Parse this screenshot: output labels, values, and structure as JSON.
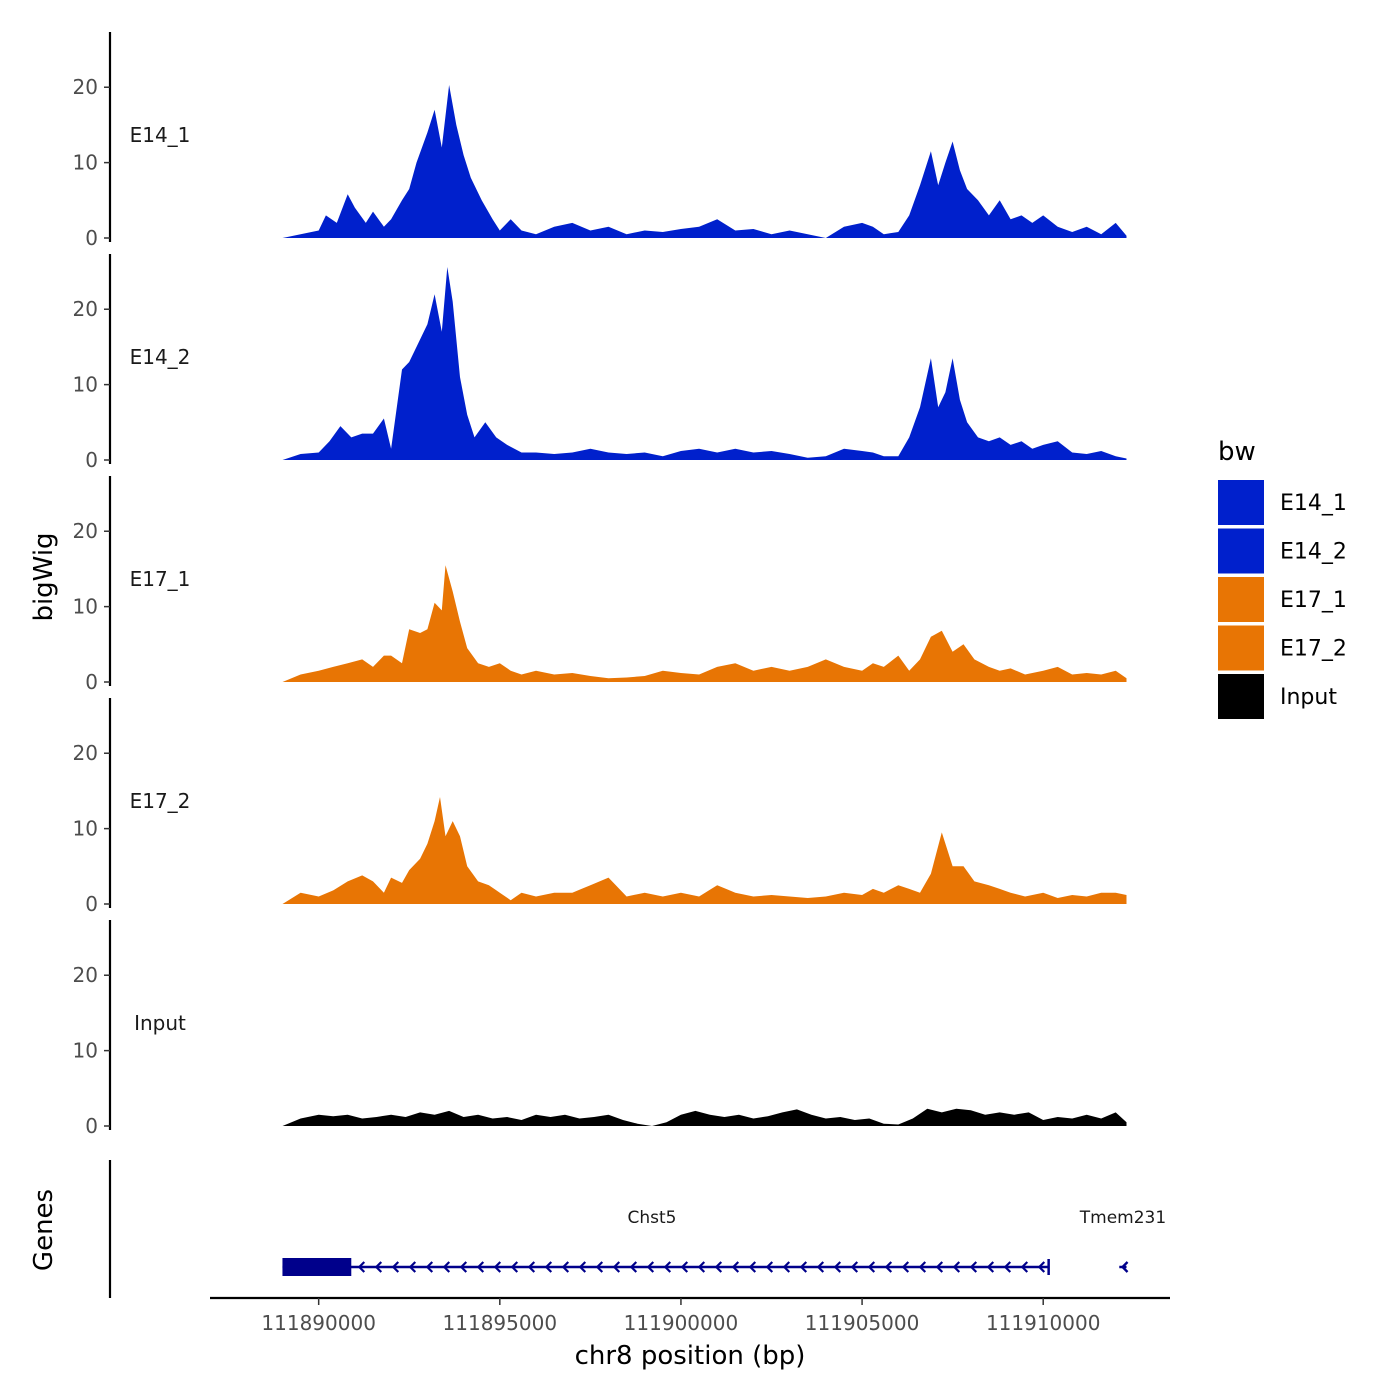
{
  "chart_data": {
    "type": "area",
    "chromosome": "chr8",
    "xlabel": "chr8 position (bp)",
    "ylabel": "bigWig",
    "genes_label": "Genes",
    "xlim": [
      111887000,
      111913500
    ],
    "ylim": [
      0,
      26
    ],
    "x_ticks": [
      111890000,
      111895000,
      111900000,
      111905000,
      111910000
    ],
    "x_tick_labels": [
      "111890000",
      "111895000",
      "111900000",
      "111905000",
      "111910000"
    ],
    "y_ticks": [
      0,
      10,
      20
    ],
    "y_tick_labels": [
      "0",
      "10",
      "20"
    ],
    "legend": {
      "title": "bw",
      "entries": [
        {
          "label": "E14_1",
          "color": "#0020CC"
        },
        {
          "label": "E14_2",
          "color": "#0020CC"
        },
        {
          "label": "E17_1",
          "color": "#E87504"
        },
        {
          "label": "E17_2",
          "color": "#E87504"
        },
        {
          "label": "Input",
          "color": "#000000"
        }
      ]
    },
    "series": [
      {
        "name": "E14_1",
        "color": "#0020CC",
        "x": [
          111889000,
          111889500,
          111890000,
          111890200,
          111890500,
          111890800,
          111891000,
          111891300,
          111891500,
          111891800,
          111892000,
          111892300,
          111892500,
          111892700,
          111893000,
          111893200,
          111893400,
          111893600,
          111893800,
          111894000,
          111894200,
          111894500,
          111894800,
          111895000,
          111895300,
          111895600,
          111896000,
          111896500,
          111897000,
          111897500,
          111898000,
          111898500,
          111899000,
          111899500,
          111900000,
          111900500,
          111901000,
          111901500,
          111902000,
          111902500,
          111903000,
          111903500,
          111904000,
          111904500,
          111905000,
          111905300,
          111905600,
          111906000,
          111906300,
          111906600,
          111906900,
          111907100,
          111907300,
          111907500,
          111907700,
          111907900,
          111908200,
          111908500,
          111908800,
          111909100,
          111909400,
          111909700,
          111910000,
          111910400,
          111910800,
          111911200,
          111911600,
          111912000,
          111912300
        ],
        "values": [
          0,
          0.5,
          1,
          3,
          2,
          5.8,
          4,
          2,
          3.5,
          1.5,
          2.5,
          5,
          6.5,
          10,
          14,
          17,
          12,
          20.3,
          15,
          11,
          8,
          5,
          2.5,
          1,
          2.5,
          1,
          0.5,
          1.5,
          2,
          1,
          1.5,
          0.5,
          1,
          0.8,
          1.2,
          1.5,
          2.5,
          1,
          1.2,
          0.5,
          1,
          0.5,
          0,
          1.5,
          2,
          1.5,
          0.5,
          0.8,
          3,
          7,
          11.5,
          7,
          10,
          12.8,
          9,
          6.5,
          5,
          3,
          5,
          2.5,
          3,
          2,
          3,
          1.5,
          0.8,
          1.5,
          0.5,
          2,
          0.3
        ]
      },
      {
        "name": "E14_2",
        "color": "#0020CC",
        "x": [
          111889000,
          111889500,
          111890000,
          111890300,
          111890600,
          111890900,
          111891200,
          111891500,
          111891800,
          111892000,
          111892300,
          111892500,
          111892700,
          111893000,
          111893200,
          111893400,
          111893550,
          111893700,
          111893900,
          111894100,
          111894300,
          111894600,
          111894900,
          111895200,
          111895600,
          111896000,
          111896500,
          111897000,
          111897500,
          111898000,
          111898500,
          111899000,
          111899500,
          111900000,
          111900500,
          111901000,
          111901500,
          111902000,
          111902500,
          111903000,
          111903500,
          111904000,
          111904500,
          111905000,
          111905300,
          111905600,
          111906000,
          111906300,
          111906600,
          111906900,
          111907100,
          111907300,
          111907500,
          111907700,
          111907900,
          111908200,
          111908500,
          111908800,
          111909100,
          111909400,
          111909700,
          111910000,
          111910400,
          111910800,
          111911200,
          111911600,
          111912000,
          111912300
        ],
        "values": [
          0,
          0.8,
          1,
          2.5,
          4.5,
          3,
          3.5,
          3.5,
          5.5,
          1.5,
          12,
          13,
          15,
          18,
          22,
          17,
          25.6,
          21,
          11,
          6,
          3,
          5,
          3,
          2,
          1,
          1,
          0.8,
          1,
          1.5,
          1,
          0.8,
          1,
          0.5,
          1.2,
          1.5,
          1,
          1.5,
          1,
          1.2,
          0.8,
          0.3,
          0.5,
          1.5,
          1.2,
          1,
          0.5,
          0.5,
          3,
          7,
          13.5,
          7,
          9,
          13.5,
          8,
          5,
          3,
          2.5,
          3,
          2,
          2.5,
          1.5,
          2,
          2.5,
          1,
          0.8,
          1.2,
          0.5,
          0.2
        ]
      },
      {
        "name": "E17_1",
        "color": "#E87504",
        "x": [
          111889000,
          111889500,
          111890000,
          111890400,
          111890800,
          111891200,
          111891500,
          111891800,
          111892000,
          111892300,
          111892500,
          111892800,
          111893000,
          111893200,
          111893400,
          111893500,
          111893700,
          111893900,
          111894100,
          111894400,
          111894700,
          111895000,
          111895300,
          111895600,
          111896000,
          111896500,
          111897000,
          111897500,
          111898000,
          111898500,
          111899000,
          111899500,
          111900000,
          111900500,
          111901000,
          111901500,
          111902000,
          111902500,
          111903000,
          111903500,
          111904000,
          111904500,
          111905000,
          111905300,
          111905600,
          111906000,
          111906300,
          111906600,
          111906900,
          111907200,
          111907500,
          111907800,
          111908100,
          111908500,
          111908800,
          111909100,
          111909500,
          111910000,
          111910400,
          111910800,
          111911200,
          111911600,
          111912000,
          111912300
        ],
        "values": [
          0,
          1,
          1.5,
          2,
          2.5,
          3,
          2,
          3.5,
          3.5,
          2.5,
          7,
          6.5,
          7,
          10.5,
          9.5,
          15.5,
          12,
          8,
          4.5,
          2.5,
          2,
          2.5,
          1.5,
          1,
          1.5,
          1,
          1.2,
          0.8,
          0.5,
          0.6,
          0.8,
          1.5,
          1.2,
          1,
          2,
          2.5,
          1.5,
          2,
          1.5,
          2,
          3,
          2,
          1.5,
          2.5,
          2,
          3.5,
          1.5,
          3,
          6,
          6.8,
          4,
          5,
          3,
          2,
          1.5,
          1.8,
          1,
          1.5,
          2,
          1,
          1.2,
          1,
          1.5,
          0.5
        ]
      },
      {
        "name": "E17_2",
        "color": "#E87504",
        "x": [
          111889000,
          111889500,
          111890000,
          111890400,
          111890800,
          111891200,
          111891500,
          111891800,
          111892000,
          111892300,
          111892500,
          111892800,
          111893000,
          111893200,
          111893350,
          111893500,
          111893700,
          111893900,
          111894100,
          111894400,
          111894700,
          111895000,
          111895300,
          111895600,
          111896000,
          111896500,
          111897000,
          111897500,
          111898000,
          111898500,
          111899000,
          111899500,
          111900000,
          111900500,
          111901000,
          111901500,
          111902000,
          111902500,
          111903000,
          111903500,
          111904000,
          111904500,
          111905000,
          111905300,
          111905600,
          111906000,
          111906300,
          111906600,
          111906900,
          111907200,
          111907500,
          111907800,
          111908100,
          111908500,
          111908800,
          111909100,
          111909500,
          111910000,
          111910400,
          111910800,
          111911200,
          111911600,
          111912000,
          111912300
        ],
        "values": [
          0,
          1.5,
          1,
          1.8,
          3,
          3.8,
          3,
          1.5,
          3.5,
          2.8,
          4.5,
          6,
          8,
          11,
          14.2,
          9,
          11,
          9,
          5,
          3,
          2.5,
          1.5,
          0.5,
          1.5,
          1,
          1.5,
          1.5,
          2.5,
          3.5,
          1,
          1.5,
          1,
          1.5,
          1,
          2.5,
          1.5,
          1,
          1.2,
          1,
          0.8,
          1,
          1.5,
          1.2,
          2,
          1.5,
          2.5,
          2,
          1.5,
          4,
          9.5,
          5,
          5,
          3,
          2.5,
          2,
          1.5,
          1,
          1.5,
          0.8,
          1.2,
          1,
          1.5,
          1.5,
          1.2
        ]
      },
      {
        "name": "Input",
        "color": "#000000",
        "x": [
          111889000,
          111889500,
          111890000,
          111890400,
          111890800,
          111891200,
          111891600,
          111892000,
          111892400,
          111892800,
          111893200,
          111893600,
          111894000,
          111894400,
          111894800,
          111895200,
          111895600,
          111896000,
          111896400,
          111896800,
          111897200,
          111897600,
          111898000,
          111898400,
          111898800,
          111899200,
          111899600,
          111900000,
          111900400,
          111900800,
          111901200,
          111901600,
          111902000,
          111902400,
          111902800,
          111903200,
          111903600,
          111904000,
          111904400,
          111904800,
          111905200,
          111905600,
          111906000,
          111906400,
          111906800,
          111907200,
          111907600,
          111908000,
          111908400,
          111908800,
          111909200,
          111909600,
          111910000,
          111910400,
          111910800,
          111911200,
          111911600,
          111912000,
          111912300
        ],
        "values": [
          0,
          1,
          1.5,
          1.3,
          1.5,
          1,
          1.2,
          1.5,
          1.2,
          1.8,
          1.5,
          2,
          1.2,
          1.5,
          1,
          1.2,
          0.8,
          1.5,
          1.2,
          1.5,
          1,
          1.2,
          1.5,
          0.8,
          0.3,
          0,
          0.5,
          1.5,
          2,
          1.5,
          1.2,
          1.5,
          1,
          1.3,
          1.8,
          2.2,
          1.5,
          1,
          1.2,
          0.8,
          1,
          0.3,
          0.2,
          1,
          2.3,
          1.8,
          2.3,
          2.1,
          1.5,
          1.8,
          1.5,
          1.8,
          0.8,
          1.2,
          1,
          1.5,
          1,
          1.8,
          0.5
        ]
      }
    ],
    "genes": [
      {
        "name": "Chst5",
        "start": 111889000,
        "end": 111910150,
        "cds_start": 111889000,
        "cds_end": 111890900,
        "strand": "-",
        "color": "#00008B"
      },
      {
        "name": "Tmem231",
        "start": 111912100,
        "end": 111912300,
        "strand": "-",
        "color": "#00008B"
      }
    ]
  }
}
